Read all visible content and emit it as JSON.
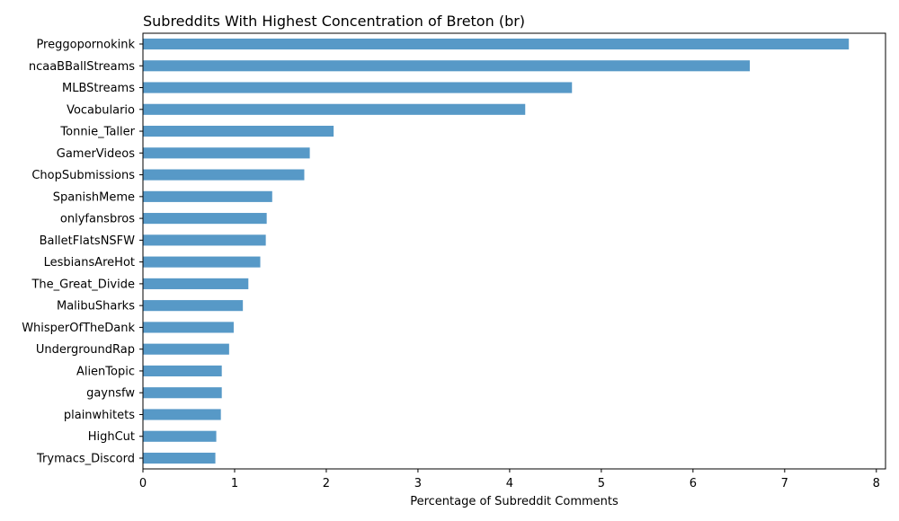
{
  "chart_data": {
    "type": "bar",
    "orientation": "horizontal",
    "title": "Subreddits With Highest Concentration of Breton (br)",
    "xlabel": "Percentage of Subreddit Comments",
    "ylabel": "",
    "xlim": [
      0,
      8.1
    ],
    "xticks": [
      0,
      1,
      2,
      3,
      4,
      5,
      6,
      7,
      8
    ],
    "grid": false,
    "legend": "none",
    "bar_color": "#5799c7",
    "categories": [
      "Preggopornokink",
      "ncaaBBallStreams",
      "MLBStreams",
      "Vocabulario",
      "Tonnie_Taller",
      "GamerVideos",
      "ChopSubmissions",
      "SpanishMeme",
      "onlyfansbros",
      "BalletFlatsNSFW",
      "LesbiansAreHot",
      "The_Great_Divide",
      "MalibuSharks",
      "WhisperOfTheDank",
      "UndergroundRap",
      "AlienTopic",
      "gaynsfw",
      "plainwhitets",
      "HighCut",
      "Trymacs_Discord"
    ],
    "values": [
      7.7,
      6.62,
      4.68,
      4.17,
      2.08,
      1.82,
      1.76,
      1.41,
      1.35,
      1.34,
      1.28,
      1.15,
      1.09,
      0.99,
      0.94,
      0.86,
      0.86,
      0.85,
      0.8,
      0.79
    ]
  }
}
